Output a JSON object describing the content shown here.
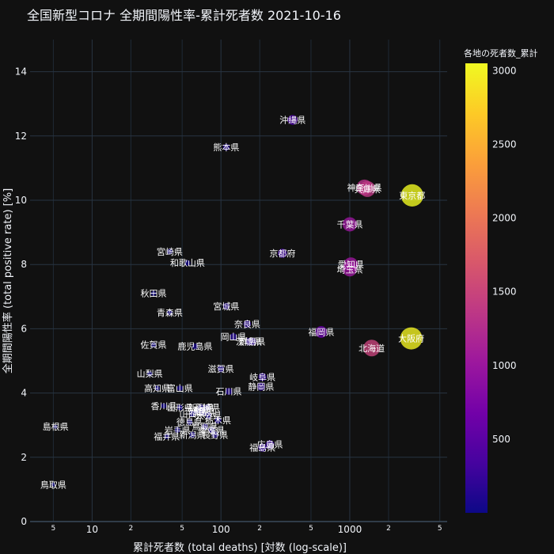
{
  "chart_data": {
    "type": "scatter",
    "title": "全国新型コロナ 全期間陽性率-累計死者数 2021-10-16",
    "xlabel": "累計死者数 (total deaths) [対数 (log-scale)]",
    "ylabel": "全期間陽性率 (total positive rate) [%]",
    "x_scale": "log",
    "xlim": [
      3.3,
      5700
    ],
    "ylim": [
      0,
      15
    ],
    "x_major_ticks": [
      10,
      100,
      1000
    ],
    "x_major_tick_labels": [
      "10",
      "100",
      "1000"
    ],
    "x_minor_ticks": [
      5,
      20,
      50,
      200,
      500,
      2000,
      5000
    ],
    "x_minor_tick_labels": [
      "5",
      "2",
      "5",
      "2",
      "5",
      "2",
      "5"
    ],
    "y_ticks": [
      0,
      2,
      4,
      6,
      8,
      10,
      12,
      14
    ],
    "grid": true,
    "colorbar": {
      "title": "各地の死者数_累計",
      "range": [
        0,
        3050
      ],
      "ticks": [
        500,
        1000,
        1500,
        2000,
        2500,
        3000
      ],
      "colorscale": [
        "#0d0887",
        "#46039f",
        "#7201a8",
        "#9c179e",
        "#bd3786",
        "#d8576b",
        "#ed7953",
        "#fb9f3a",
        "#fdca26",
        "#f0f921"
      ]
    },
    "points": [
      {
        "label": "東京都",
        "x": 3050,
        "y": 10.15
      },
      {
        "label": "大阪府",
        "x": 3000,
        "y": 5.7
      },
      {
        "label": "神奈川県",
        "x": 1300,
        "y": 10.4
      },
      {
        "label": "兵庫県",
        "x": 1370,
        "y": 10.35
      },
      {
        "label": "千葉県",
        "x": 1000,
        "y": 9.25
      },
      {
        "label": "愛知県",
        "x": 1020,
        "y": 8.0
      },
      {
        "label": "埼玉県",
        "x": 1000,
        "y": 7.85
      },
      {
        "label": "北海道",
        "x": 1480,
        "y": 5.4
      },
      {
        "label": "福岡県",
        "x": 600,
        "y": 5.9
      },
      {
        "label": "沖縄県",
        "x": 360,
        "y": 12.5
      },
      {
        "label": "熊本県",
        "x": 110,
        "y": 11.65
      },
      {
        "label": "京都府",
        "x": 300,
        "y": 8.35
      },
      {
        "label": "宮崎県",
        "x": 40,
        "y": 8.4
      },
      {
        "label": "和歌山県",
        "x": 55,
        "y": 8.05
      },
      {
        "label": "秋田県",
        "x": 30,
        "y": 7.1
      },
      {
        "label": "宮城県",
        "x": 110,
        "y": 6.7
      },
      {
        "label": "青森県",
        "x": 40,
        "y": 6.5
      },
      {
        "label": "奈良県",
        "x": 160,
        "y": 6.15
      },
      {
        "label": "岡山県",
        "x": 125,
        "y": 5.75
      },
      {
        "label": "群馬県",
        "x": 175,
        "y": 5.6
      },
      {
        "label": "茨城県",
        "x": 165,
        "y": 5.6
      },
      {
        "label": "佐賀県",
        "x": 30,
        "y": 5.5
      },
      {
        "label": "鹿児島県",
        "x": 63,
        "y": 5.45
      },
      {
        "label": "滋賀県",
        "x": 100,
        "y": 4.75
      },
      {
        "label": "山梨県",
        "x": 28,
        "y": 4.6
      },
      {
        "label": "岐阜県",
        "x": 210,
        "y": 4.5
      },
      {
        "label": "静岡県",
        "x": 205,
        "y": 4.2
      },
      {
        "label": "高知県",
        "x": 32,
        "y": 4.15
      },
      {
        "label": "富山県",
        "x": 48,
        "y": 4.15
      },
      {
        "label": "石川県",
        "x": 115,
        "y": 4.05
      },
      {
        "label": "香川県",
        "x": 36,
        "y": 3.6
      },
      {
        "label": "山形県",
        "x": 48,
        "y": 3.55
      },
      {
        "label": "新潟県",
        "x": 70,
        "y": 3.55
      },
      {
        "label": "長崎県",
        "x": 78,
        "y": 3.55
      },
      {
        "label": "三重県",
        "x": 65,
        "y": 3.45
      },
      {
        "label": "福島県",
        "x": 72,
        "y": 3.4
      },
      {
        "label": "山口県",
        "x": 60,
        "y": 3.35
      },
      {
        "label": "大分県",
        "x": 80,
        "y": 3.3
      },
      {
        "label": "栃木県",
        "x": 95,
        "y": 3.15
      },
      {
        "label": "徳島県",
        "x": 57,
        "y": 3.1
      },
      {
        "label": "鳥取県",
        "x": 75,
        "y": 2.95
      },
      {
        "label": "岩手県",
        "x": 46,
        "y": 2.85
      },
      {
        "label": "愛媛県",
        "x": 85,
        "y": 2.85
      },
      {
        "label": "島根県",
        "x": 5.2,
        "y": 2.95
      },
      {
        "label": "福井県",
        "x": 38,
        "y": 2.65
      },
      {
        "label": "新潟県",
        "x": 60,
        "y": 2.7
      },
      {
        "label": "長野県",
        "x": 90,
        "y": 2.7
      },
      {
        "label": "広島県",
        "x": 240,
        "y": 2.4
      },
      {
        "label": "福島県",
        "x": 210,
        "y": 2.3
      },
      {
        "label": "鳥取県",
        "x": 5.0,
        "y": 1.15
      }
    ]
  }
}
